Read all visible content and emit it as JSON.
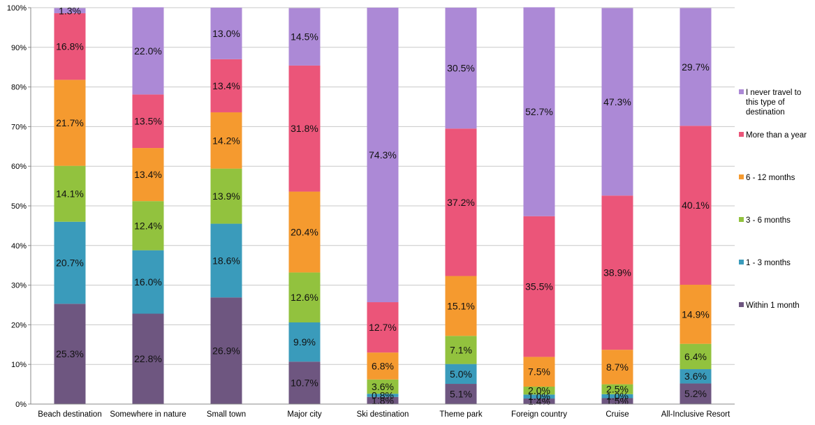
{
  "chart_data": {
    "type": "bar",
    "stacked": true,
    "percent_stacked": true,
    "categories": [
      "Beach destination",
      "Somewhere in nature",
      "Small town",
      "Major city",
      "Ski destination",
      "Theme park",
      "Foreign country",
      "Cruise",
      "All-Inclusive Resort"
    ],
    "y_ticks": [
      "0%",
      "10%",
      "20%",
      "30%",
      "40%",
      "50%",
      "60%",
      "70%",
      "80%",
      "90%",
      "100%"
    ],
    "ylim": [
      0,
      100
    ],
    "grid": true,
    "legend_position": "right",
    "series": [
      {
        "name": "Within 1 month",
        "color": "#6e5680",
        "values": [
          25.3,
          22.8,
          26.9,
          10.7,
          1.8,
          5.1,
          1.4,
          1.5,
          5.2
        ],
        "labels": [
          "25.3%",
          "22.8%",
          "26.9%",
          "10.7%",
          "1.8%",
          "5.1%",
          "1.4%",
          "1.5%",
          "5.2%"
        ]
      },
      {
        "name": "1 - 3 months",
        "color": "#3a9bbb",
        "values": [
          20.7,
          16.0,
          18.6,
          9.9,
          0.8,
          5.0,
          1.0,
          1.0,
          3.6
        ],
        "labels": [
          "20.7%",
          "16.0%",
          "18.6%",
          "9.9%",
          "0.8%",
          "5.0%",
          "1.0%",
          "1.0%",
          "3.6%"
        ]
      },
      {
        "name": "3 - 6 months",
        "color": "#92c23e",
        "values": [
          14.1,
          12.4,
          13.9,
          12.6,
          3.6,
          7.1,
          2.0,
          2.5,
          6.4
        ],
        "labels": [
          "14.1%",
          "12.4%",
          "13.9%",
          "12.6%",
          "3.6%",
          "7.1%",
          "2.0%",
          "2.5%",
          "6.4%"
        ]
      },
      {
        "name": "6 - 12 months",
        "color": "#f59a2f",
        "values": [
          21.7,
          13.4,
          14.2,
          20.4,
          6.8,
          15.1,
          7.5,
          8.7,
          14.9
        ],
        "labels": [
          "21.7%",
          "13.4%",
          "14.2%",
          "20.4%",
          "6.8%",
          "15.1%",
          "7.5%",
          "8.7%",
          "14.9%"
        ]
      },
      {
        "name": "More than a year",
        "color": "#eb5579",
        "values": [
          16.8,
          13.5,
          13.4,
          31.8,
          12.7,
          37.2,
          35.5,
          38.9,
          40.1
        ],
        "labels": [
          "16.8%",
          "13.5%",
          "13.4%",
          "31.8%",
          "12.7%",
          "37.2%",
          "35.5%",
          "38.9%",
          "40.1%"
        ]
      },
      {
        "name": "I never travel to this type of destination",
        "color": "#ac89d6",
        "values": [
          1.3,
          22.0,
          13.0,
          14.5,
          74.3,
          30.5,
          52.7,
          47.3,
          29.7
        ],
        "labels": [
          "1.3%",
          "22.0%",
          "13.0%",
          "14.5%",
          "74.3%",
          "30.5%",
          "52.7%",
          "47.3%",
          "29.7%"
        ]
      }
    ]
  }
}
